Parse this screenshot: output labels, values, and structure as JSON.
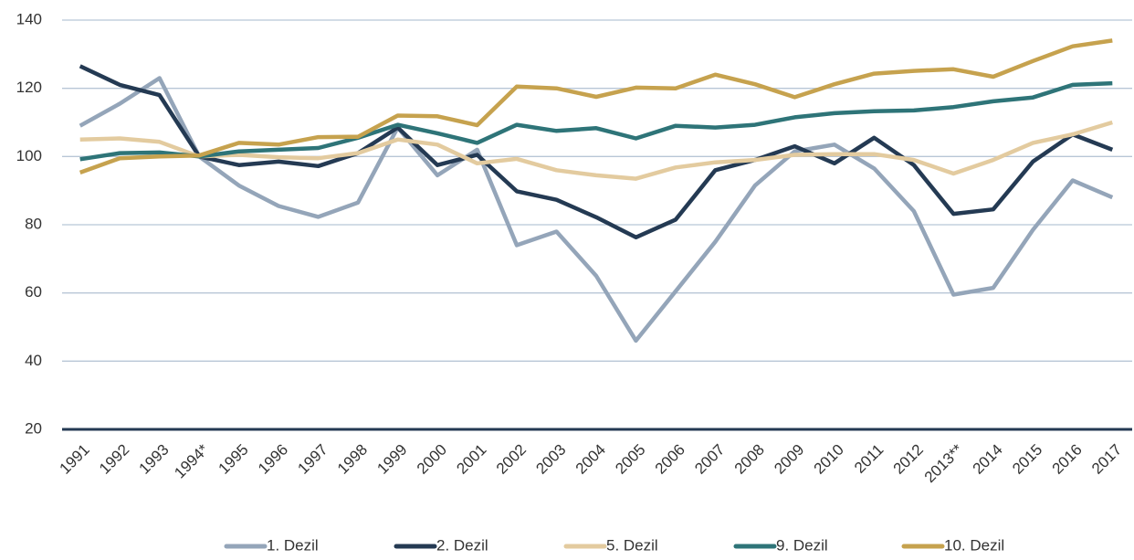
{
  "chart_data": {
    "type": "line",
    "categories": [
      "1991",
      "1992",
      "1993",
      "1994*",
      "1995",
      "1996",
      "1997",
      "1998",
      "1999",
      "2000",
      "2001",
      "2002",
      "2003",
      "2004",
      "2005",
      "2006",
      "2007",
      "2008",
      "2009",
      "2010",
      "2011",
      "2012",
      "2013**",
      "2014",
      "2015",
      "2016",
      "2017"
    ],
    "series": [
      {
        "name": "1. Dezil",
        "color": "#94a5b9",
        "values": [
          109,
          115.5,
          123,
          100,
          91.5,
          85.5,
          82.3,
          86.5,
          108.5,
          94.5,
          102,
          74,
          78,
          65,
          46,
          60.5,
          75,
          91.5,
          101.5,
          103.5,
          96.5,
          84,
          59.5,
          61.5,
          78.5,
          93,
          88
        ]
      },
      {
        "name": "2. Dezil",
        "color": "#243a53",
        "values": [
          126.5,
          121,
          118,
          100,
          97.5,
          98.5,
          97.2,
          101,
          108.5,
          97.5,
          100.5,
          89.8,
          87.3,
          82.2,
          76.3,
          81.5,
          96,
          99,
          103,
          98,
          105.5,
          97.5,
          83.2,
          84.5,
          98.5,
          106.5,
          102
        ]
      },
      {
        "name": "5. Dezil",
        "color": "#e3cb9f",
        "values": [
          105,
          105.3,
          104.3,
          100,
          100.5,
          99.8,
          99.5,
          101,
          105,
          103.5,
          98,
          99.3,
          96,
          94.5,
          93.5,
          96.8,
          98.3,
          99,
          100.5,
          100.7,
          100.7,
          99,
          95,
          99,
          104,
          106.5,
          110
        ]
      },
      {
        "name": "9. Dezil",
        "color": "#2e7478",
        "values": [
          99.2,
          101,
          101.2,
          100,
          101.5,
          102,
          102.5,
          105.5,
          109.3,
          106.8,
          104,
          109.3,
          107.5,
          108.3,
          105.3,
          109,
          108.5,
          109.3,
          111.5,
          112.7,
          113.3,
          113.5,
          114.5,
          116.2,
          117.3,
          121,
          121.5
        ]
      },
      {
        "name": "10. Dezil",
        "color": "#c6a24e",
        "values": [
          95.3,
          99.5,
          100,
          100.3,
          104,
          103.5,
          105.7,
          105.8,
          112,
          111.8,
          109.2,
          120.5,
          120,
          117.5,
          120.2,
          120,
          124,
          121.2,
          117.4,
          121.2,
          124.3,
          125.1,
          125.6,
          123.4,
          128,
          132.3,
          134
        ]
      }
    ],
    "ylim": [
      20,
      140
    ],
    "yticks": [
      20,
      40,
      60,
      80,
      100,
      120,
      140
    ],
    "grid": true,
    "legend": "bottom"
  }
}
